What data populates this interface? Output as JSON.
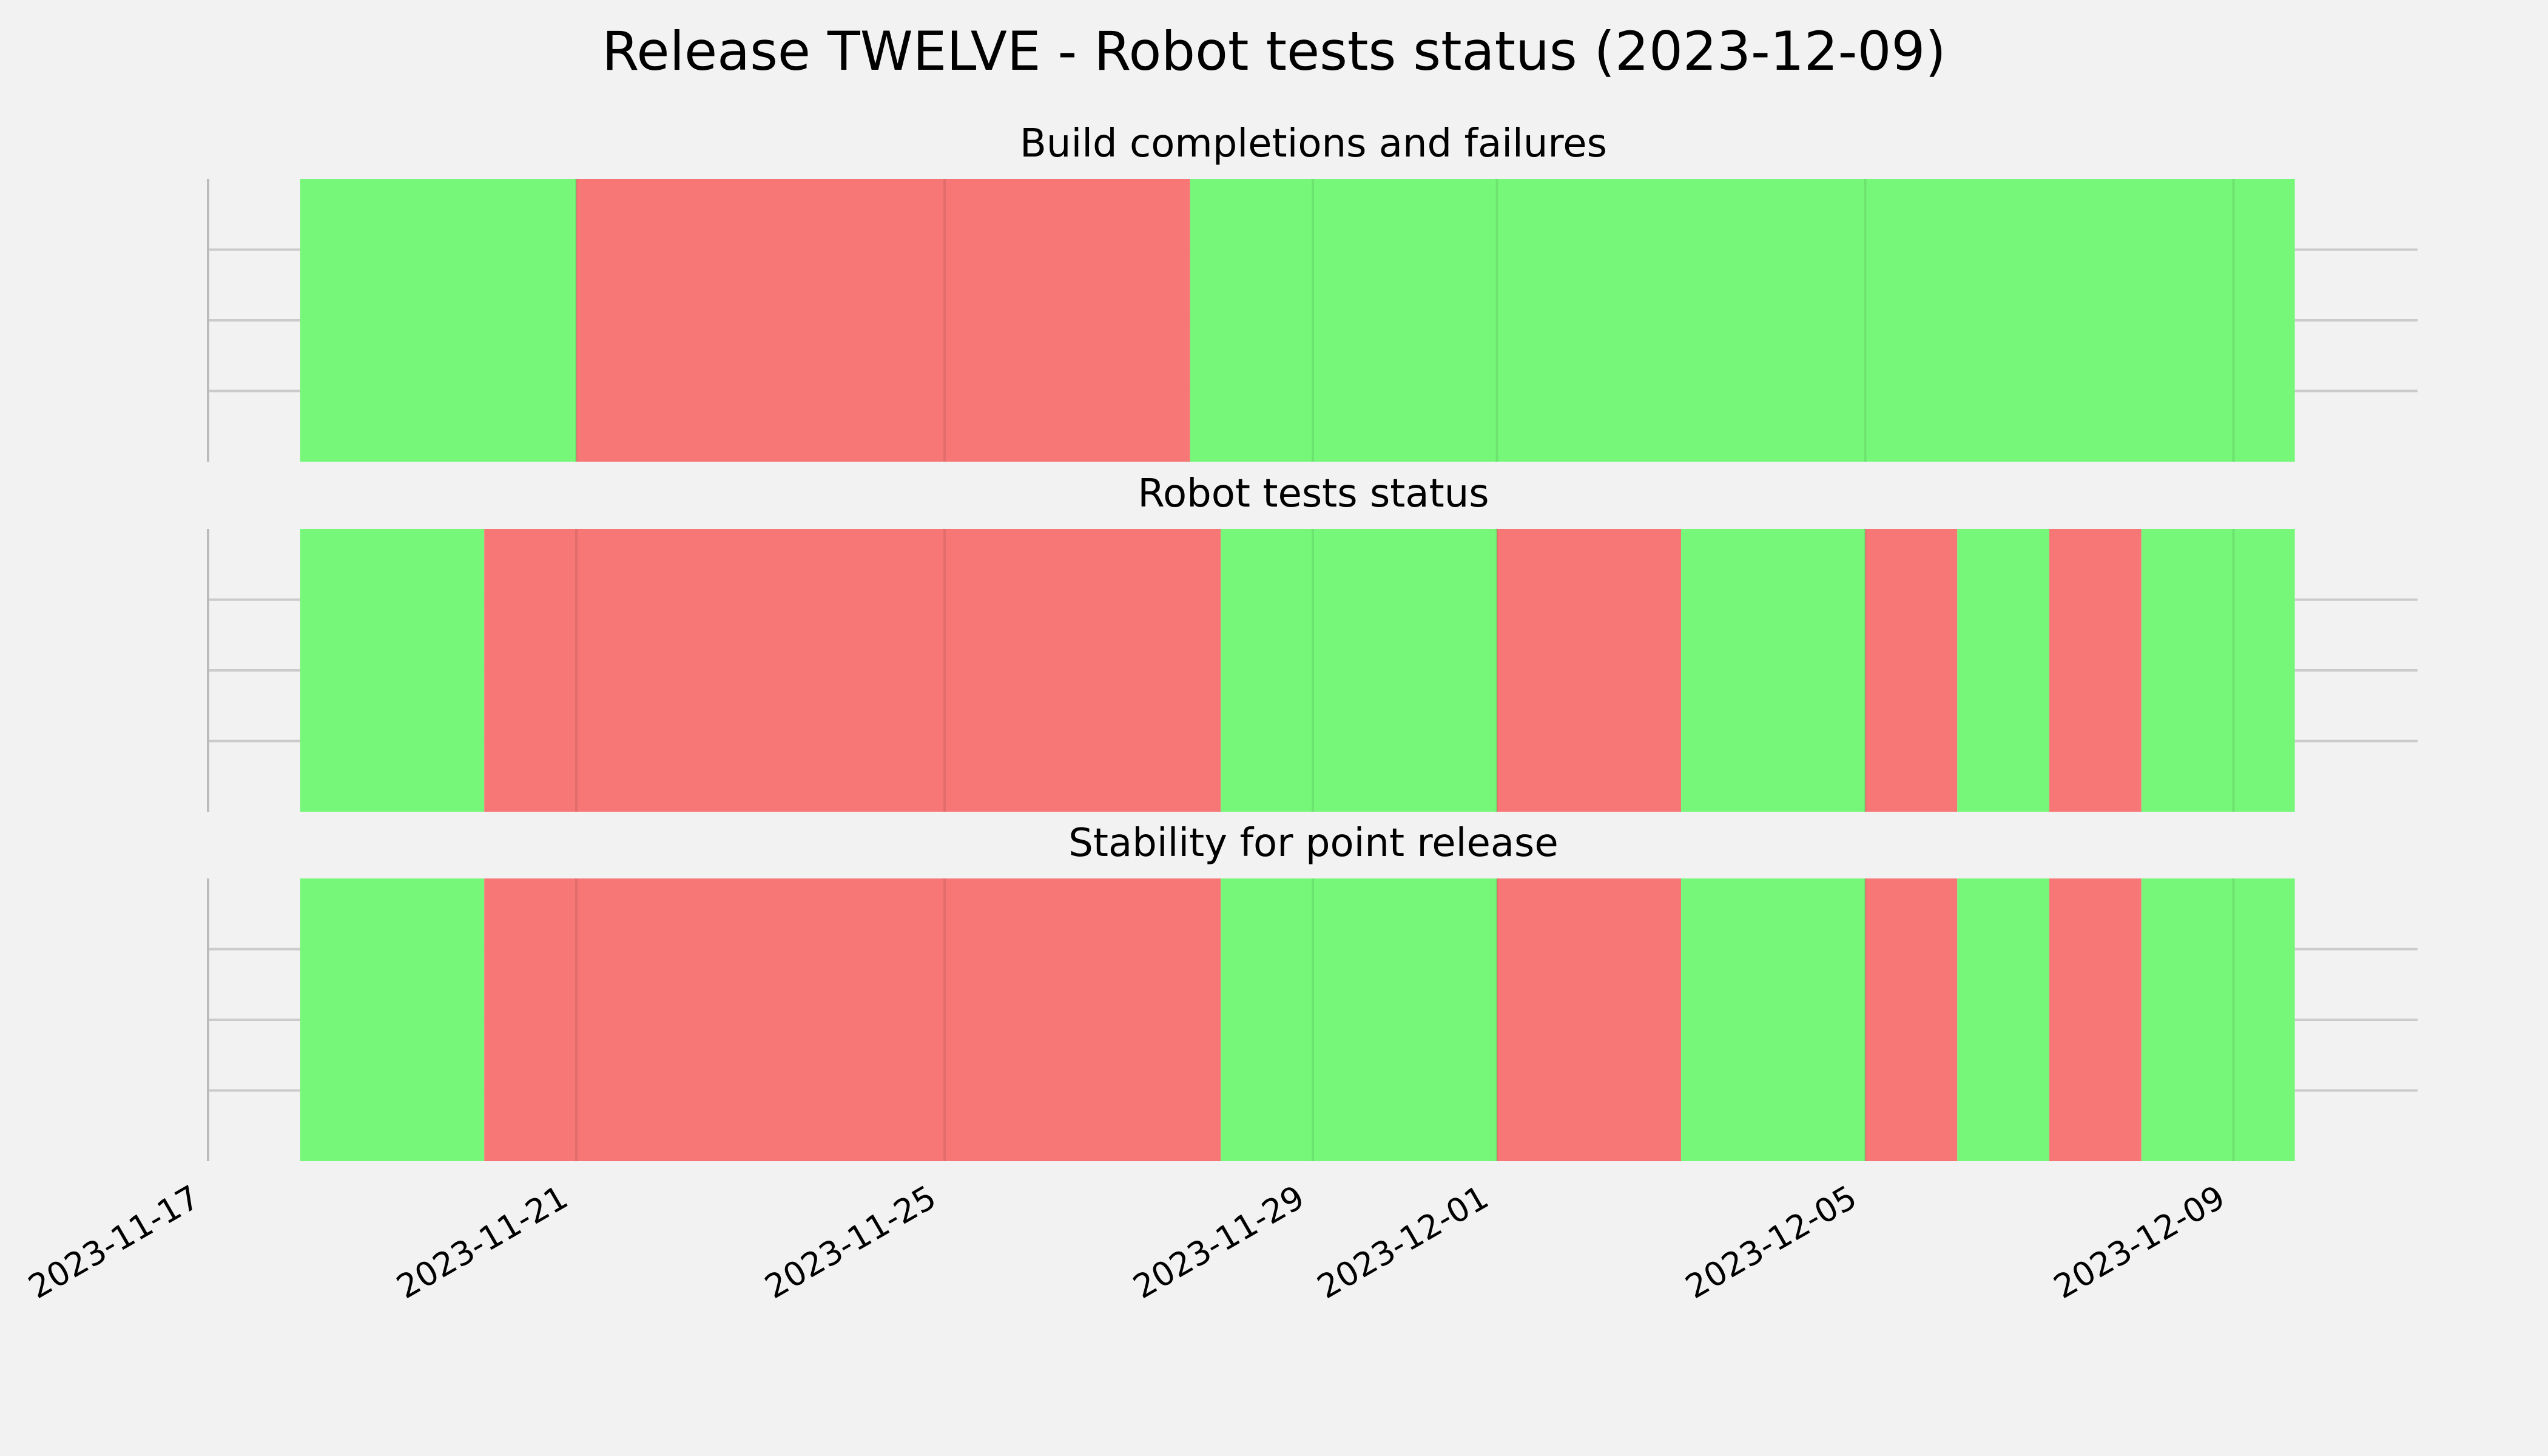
{
  "chart_data": {
    "type": "timeline",
    "title": "Release TWELVE - Robot tests status (2023-12-09)",
    "colors": {
      "pass": "#77f77a",
      "fail": "#f77777"
    },
    "x_axis": {
      "range": [
        "2023-11-17",
        "2023-12-11"
      ],
      "ticks": [
        "2023-11-17",
        "2023-11-21",
        "2023-11-25",
        "2023-11-29",
        "2023-12-01",
        "2023-12-05",
        "2023-12-09"
      ]
    },
    "grid": true,
    "panels": [
      {
        "title": "Build completions and failures",
        "segments": [
          {
            "start": "2023-11-18",
            "end": "2023-11-21",
            "status": "pass"
          },
          {
            "start": "2023-11-21",
            "end": "2023-11-27T16:00",
            "status": "fail"
          },
          {
            "start": "2023-11-27T16:00",
            "end": "2023-12-09T16:00",
            "status": "pass"
          }
        ]
      },
      {
        "title": "Robot tests status",
        "segments": [
          {
            "start": "2023-11-18",
            "end": "2023-11-20",
            "status": "pass"
          },
          {
            "start": "2023-11-20",
            "end": "2023-11-28",
            "status": "fail"
          },
          {
            "start": "2023-11-28",
            "end": "2023-12-01",
            "status": "pass"
          },
          {
            "start": "2023-12-01",
            "end": "2023-12-03",
            "status": "fail"
          },
          {
            "start": "2023-12-03",
            "end": "2023-12-05",
            "status": "pass"
          },
          {
            "start": "2023-12-05",
            "end": "2023-12-06",
            "status": "fail"
          },
          {
            "start": "2023-12-06",
            "end": "2023-12-07",
            "status": "pass"
          },
          {
            "start": "2023-12-07",
            "end": "2023-12-08",
            "status": "fail"
          },
          {
            "start": "2023-12-08",
            "end": "2023-12-09T16:00",
            "status": "pass"
          }
        ]
      },
      {
        "title": "Stability for point release",
        "segments": [
          {
            "start": "2023-11-18",
            "end": "2023-11-20",
            "status": "pass"
          },
          {
            "start": "2023-11-20",
            "end": "2023-11-28",
            "status": "fail"
          },
          {
            "start": "2023-11-28",
            "end": "2023-12-01",
            "status": "pass"
          },
          {
            "start": "2023-12-01",
            "end": "2023-12-03",
            "status": "fail"
          },
          {
            "start": "2023-12-03",
            "end": "2023-12-05",
            "status": "pass"
          },
          {
            "start": "2023-12-05",
            "end": "2023-12-06",
            "status": "fail"
          },
          {
            "start": "2023-12-06",
            "end": "2023-12-07",
            "status": "pass"
          },
          {
            "start": "2023-12-07",
            "end": "2023-12-08",
            "status": "fail"
          },
          {
            "start": "2023-12-08",
            "end": "2023-12-09T16:00",
            "status": "pass"
          }
        ]
      }
    ]
  }
}
